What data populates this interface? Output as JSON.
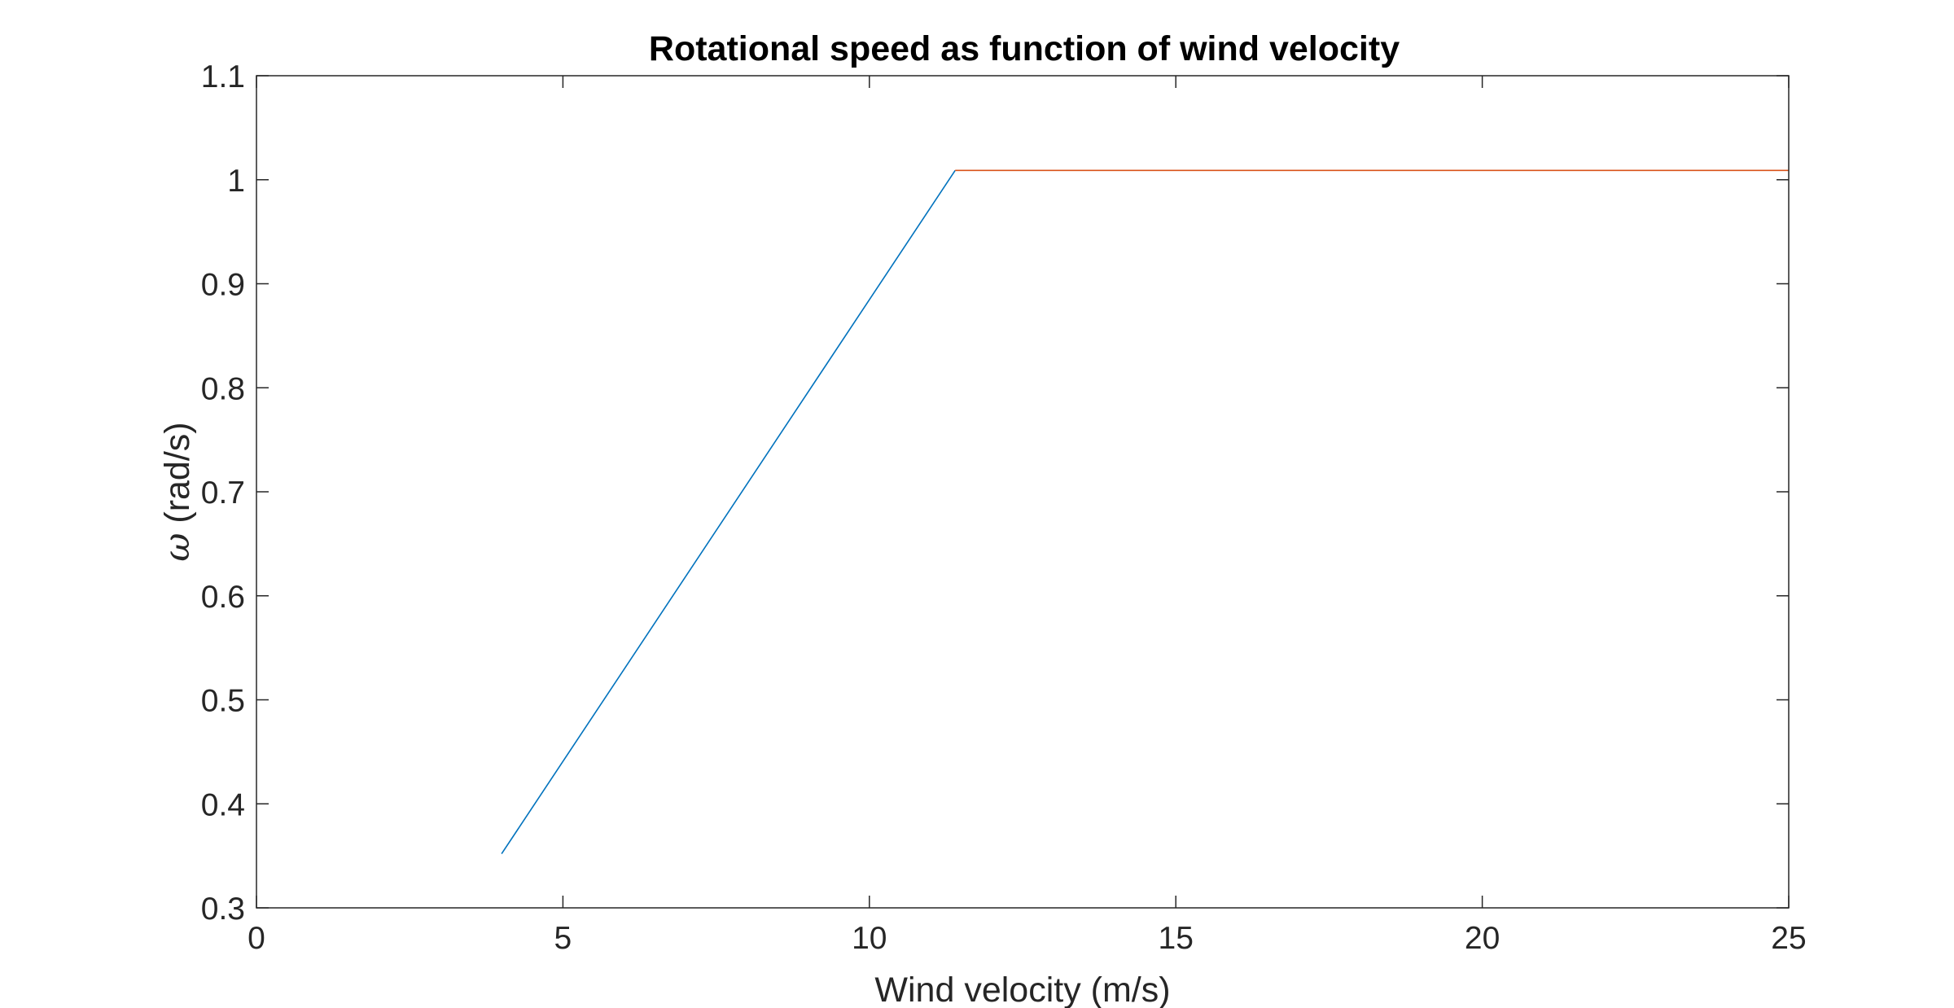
{
  "chart_data": {
    "type": "line",
    "title": "Rotational speed as function of wind velocity",
    "xlabel": "Wind velocity (m/s)",
    "ylabel_symbol": "ω",
    "ylabel_unit": " (rad/s)",
    "xlim": [
      0,
      25
    ],
    "ylim": [
      0.3,
      1.1
    ],
    "xticks": [
      0,
      5,
      10,
      15,
      20,
      25
    ],
    "xtick_labels": [
      "0",
      "5",
      "10",
      "15",
      "20",
      "25"
    ],
    "yticks": [
      0.3,
      0.4,
      0.5,
      0.6,
      0.7,
      0.8,
      0.9,
      1.0,
      1.1
    ],
    "ytick_labels": [
      "0.3",
      "0.4",
      "0.5",
      "0.6",
      "0.7",
      "0.8",
      "0.9",
      "1",
      "1.1"
    ],
    "grid": false,
    "legend": "none",
    "series": [
      {
        "color": "#0072BD",
        "x": [
          4.0,
          11.4
        ],
        "y": [
          0.352,
          1.009
        ]
      },
      {
        "color": "#D95319",
        "x": [
          11.4,
          25.0
        ],
        "y": [
          1.009,
          1.009
        ]
      }
    ]
  }
}
